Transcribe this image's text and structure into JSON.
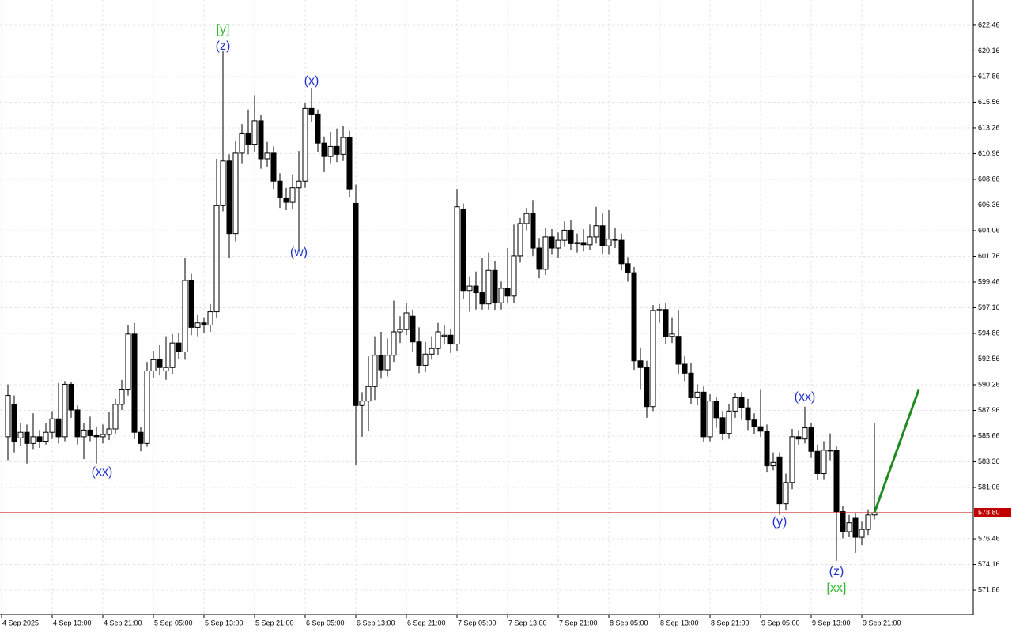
{
  "chart_data": {
    "type": "candlestick",
    "categories": [
      "4 Sep 2025",
      null,
      null,
      null,
      null,
      null,
      null,
      null,
      "4 Sep 13:00",
      null,
      null,
      null,
      null,
      null,
      null,
      null,
      "4 Sep 21:00",
      null,
      null,
      null,
      null,
      null,
      null,
      null,
      "5 Sep 05:00",
      null,
      null,
      null,
      null,
      null,
      null,
      null,
      "5 Sep 13:00",
      null,
      null,
      null,
      null,
      null,
      null,
      null,
      "5 Sep 21:00",
      null,
      null,
      null,
      null,
      null,
      null,
      null,
      "6 Sep 05:00",
      null,
      null,
      null,
      null,
      null,
      null,
      null,
      "6 Sep 13:00",
      null,
      null,
      null,
      null,
      null,
      null,
      null,
      "6 Sep 21:00",
      null,
      null,
      null,
      null,
      null,
      null,
      null,
      "7 Sep 05:00",
      null,
      null,
      null,
      null,
      null,
      null,
      null,
      "7 Sep 13:00",
      null,
      null,
      null,
      null,
      null,
      null,
      null,
      "7 Sep 21:00",
      null,
      null,
      null,
      null,
      null,
      null,
      null,
      "8 Sep 05:00",
      null,
      null,
      null,
      null,
      null,
      null,
      null,
      "8 Sep 13:00",
      null,
      null,
      null,
      null,
      null,
      null,
      null,
      "8 Sep 21:00",
      null,
      null,
      null,
      null,
      null,
      null,
      null,
      "9 Sep 05:00",
      null,
      null,
      null,
      null,
      null,
      null,
      null,
      "9 Sep 13:00",
      null,
      null,
      null,
      null,
      null,
      null,
      null,
      "9 Sep 21:00",
      null
    ],
    "open": [
      585.6,
      588.5,
      585.5,
      586,
      585,
      585.6,
      585.2,
      586,
      587.2,
      585.6,
      590.3,
      588,
      585.6,
      586.2,
      585.7,
      585.6,
      585.8,
      586.3,
      588.5,
      589.8,
      594.8,
      586,
      585,
      591.5,
      592.5,
      591.5,
      591.8,
      594,
      593.2,
      599.6,
      595.4,
      595.8,
      595.6,
      596.8,
      606.3,
      610.3,
      603.8,
      611,
      612.8,
      611.8,
      613.9,
      610.5,
      611,
      608.5,
      607,
      606.6,
      607.9,
      608.5,
      615,
      614.5,
      611.9,
      610.7,
      611.6,
      610.9,
      612.4,
      606.5,
      588.4,
      588.8,
      590.1,
      592.9,
      591.6,
      592.9,
      595,
      595.2,
      596.4,
      594.1,
      592,
      593,
      593.5,
      594.6,
      594.7,
      593.9,
      606,
      598.7,
      599.1,
      598.5,
      597.5,
      600.5,
      597.6,
      598.9,
      598.2,
      601.8,
      604.7,
      605.6,
      602.5,
      600.6,
      603.5,
      602.5,
      603.2,
      604.1,
      602.9,
      603,
      602.8,
      603.5,
      604.5,
      602.7,
      603.3,
      603.2,
      601.1,
      600.3,
      592.4,
      591.8,
      588.3,
      596.9,
      597,
      594.6,
      594.6,
      592.1,
      591.3,
      589.1,
      589.6,
      585.6,
      588.8,
      587.3,
      585.9,
      587.9,
      589.1,
      588.2,
      587.1,
      586.5,
      586.1,
      583,
      583.8,
      579.6,
      581.5,
      585.6,
      585.4,
      586.4,
      584.3,
      582.3,
      584.4,
      584.4,
      578.9,
      577.1,
      578.3,
      576.6,
      577.3,
      578.6
    ],
    "high": [
      590.3,
      589.3,
      586.8,
      586.7,
      587.7,
      586.2,
      586.8,
      587.9,
      590.4,
      590.6,
      590.5,
      588.4,
      586.8,
      587.4,
      586.5,
      586.7,
      587.8,
      589,
      590.7,
      595.6,
      595.8,
      586.5,
      592.3,
      593.3,
      593.8,
      594.6,
      594.8,
      594.9,
      601.6,
      600.2,
      596.5,
      596.3,
      597.5,
      610.5,
      620.2,
      610.9,
      612.1,
      613.6,
      614.9,
      616.2,
      614.4,
      612,
      611.6,
      609.2,
      607.9,
      609.1,
      611.2,
      615.5,
      616.8,
      614.9,
      612.5,
      612.9,
      613.2,
      613.4,
      613,
      608.2,
      589.6,
      592.8,
      594.6,
      595,
      594.4,
      597.8,
      596.4,
      597.6,
      597,
      595.4,
      594.1,
      594.6,
      595.8,
      595.6,
      595.3,
      607.8,
      606.5,
      599.9,
      600.4,
      601.6,
      602.1,
      601.3,
      599.5,
      602.5,
      604.6,
      605.2,
      606.1,
      606.8,
      603.4,
      604.3,
      604.2,
      603.9,
      604.9,
      605,
      603.8,
      604.2,
      604.6,
      606.2,
      605.6,
      605.9,
      604.3,
      603.8,
      601.7,
      600.8,
      593.6,
      592.4,
      597.4,
      597.5,
      597.6,
      596.3,
      596.9,
      592.8,
      592.2,
      590.3,
      590.1,
      589.4,
      589.2,
      587.9,
      588.5,
      589.5,
      589.6,
      589,
      587.7,
      589.8,
      586.7,
      584.2,
      584.2,
      582.3,
      586.3,
      586.2,
      588.3,
      586.8,
      584.9,
      585.2,
      585.9,
      584.8,
      579.4,
      578.6,
      578.8,
      578,
      579.1,
      586.8
    ],
    "low": [
      583.5,
      584.2,
      584.8,
      583.2,
      584.5,
      584.6,
      584.9,
      585.4,
      585,
      585.2,
      587.3,
      584.9,
      583.6,
      585.2,
      583.2,
      585,
      585.3,
      585.8,
      588,
      589.3,
      585.4,
      584.3,
      584.7,
      590.9,
      591.1,
      590.7,
      591.2,
      592.6,
      592.5,
      594.7,
      594.6,
      594.9,
      595,
      596.2,
      605.8,
      601.6,
      603.1,
      610.1,
      610.9,
      611.1,
      609.6,
      609.8,
      607.8,
      606.1,
      605.9,
      606,
      602.3,
      607.9,
      613.8,
      611.1,
      609.3,
      610.1,
      610.2,
      610.3,
      607.1,
      583.1,
      585.6,
      586.1,
      588.9,
      590.8,
      591,
      592.3,
      594,
      594.7,
      593.2,
      591.3,
      591.4,
      592.5,
      592.9,
      593.9,
      593.1,
      593.3,
      597.9,
      596.8,
      597,
      597,
      597,
      596.9,
      597,
      597.6,
      597.6,
      601.2,
      604.1,
      601.8,
      599.8,
      600.1,
      601.9,
      601.6,
      602.6,
      602.3,
      602.1,
      602.2,
      602.3,
      602.9,
      602,
      601.9,
      602.5,
      600.5,
      599.5,
      591.6,
      589.8,
      587.3,
      587.9,
      595.8,
      593.9,
      594,
      591.2,
      590.6,
      588.5,
      588.4,
      585.1,
      585.2,
      586.4,
      585.3,
      585.4,
      587.3,
      587.1,
      586.2,
      585.8,
      585.6,
      582.4,
      582.6,
      578.6,
      579,
      580.9,
      584.9,
      585,
      583.7,
      581.7,
      581.8,
      583.5,
      574.5,
      576.5,
      576.6,
      575.2,
      575.9,
      576.8,
      578.2
    ],
    "close": [
      589.3,
      585.2,
      586,
      585,
      585.6,
      585.2,
      586,
      587.2,
      585.6,
      590.3,
      588,
      585.6,
      586.2,
      585.7,
      585.6,
      585.8,
      586.3,
      588.5,
      589.8,
      594.8,
      586,
      585,
      591.5,
      592.5,
      591.8,
      591.8,
      594,
      593.2,
      599.6,
      595.4,
      595.8,
      595.6,
      596.8,
      606.3,
      610.3,
      603.8,
      611,
      612.8,
      611.8,
      613.9,
      610.5,
      611,
      608.5,
      607,
      606.6,
      607.9,
      608.5,
      615,
      614.5,
      611.9,
      610.7,
      611.6,
      610.9,
      612.4,
      607.8,
      588.4,
      588.8,
      590.1,
      592.9,
      591.6,
      592.9,
      595,
      595.2,
      596.7,
      594.1,
      592,
      593,
      593.5,
      595,
      594.7,
      593.9,
      606.2,
      598.7,
      599.1,
      598.5,
      597.5,
      600.5,
      597.6,
      598.9,
      598.2,
      601.8,
      604.7,
      605.6,
      602.5,
      600.6,
      603.5,
      602.5,
      603.2,
      604.1,
      602.9,
      603,
      602.8,
      603.5,
      604.5,
      602.7,
      603.3,
      603.2,
      601.1,
      600.3,
      592.4,
      591.8,
      588.3,
      596.9,
      597,
      594.6,
      594.8,
      592.1,
      591.3,
      589.1,
      589.6,
      585.6,
      588.8,
      587.3,
      585.9,
      587.9,
      589.1,
      588.2,
      587.1,
      586.5,
      586.1,
      583,
      583.3,
      579.6,
      581.5,
      585.6,
      585.4,
      586.4,
      584.3,
      582.3,
      584.4,
      584.4,
      578.9,
      577.1,
      577.9,
      576.6,
      577.3,
      578.6,
      578.8
    ],
    "ylim": [
      569.67,
      624.72
    ],
    "yticks": [
      571.86,
      574.16,
      576.46,
      581.06,
      583.36,
      585.66,
      587.96,
      590.26,
      592.56,
      594.86,
      597.16,
      599.46,
      601.76,
      604.06,
      606.36,
      608.66,
      610.96,
      613.26,
      615.56,
      617.86,
      620.16,
      622.46
    ],
    "grid": true,
    "current_price": {
      "value": 578.8,
      "label": "578.80",
      "color": "#c00000"
    },
    "forecast": {
      "color": "#1f8a1f",
      "values": [
        578.8,
        589.8
      ]
    },
    "annotations": [
      {
        "text": "[y]",
        "color": "#33bb33"
      },
      {
        "text": "(z)",
        "color": "#2233cc"
      },
      {
        "text": "(x)",
        "color": "#2233cc"
      },
      {
        "text": "(w)",
        "color": "#2233cc"
      },
      {
        "text": "(xx)",
        "color": "#2233cc"
      },
      {
        "text": "(y)",
        "color": "#2233cc"
      },
      {
        "text": "(xx)",
        "color": "#2233cc"
      },
      {
        "text": "(z)",
        "color": "#2233cc"
      },
      {
        "text": "[xx]",
        "color": "#33bb33"
      }
    ]
  }
}
